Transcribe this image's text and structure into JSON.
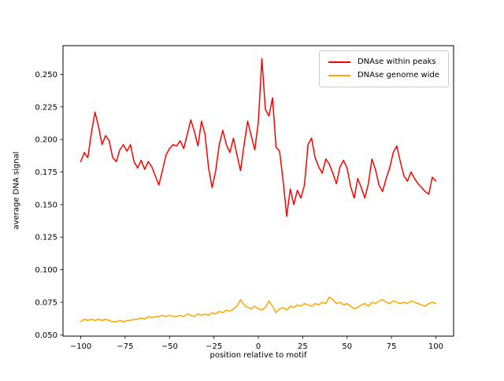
{
  "chart_data": {
    "type": "line",
    "title": "",
    "xlabel": "position relative to motif",
    "ylabel": "average DNA signal",
    "xlim": [
      -110,
      110
    ],
    "ylim": [
      0.049,
      0.272
    ],
    "grid": false,
    "legend_position": "upper right",
    "frame_color": "#000000",
    "xtick_values": [
      -100,
      -75,
      -50,
      -25,
      0,
      25,
      50,
      75,
      100
    ],
    "xtick_labels": [
      "−100",
      "−75",
      "−50",
      "−25",
      "0",
      "25",
      "50",
      "75",
      "100"
    ],
    "ytick_values": [
      0.05,
      0.075,
      0.1,
      0.125,
      0.15,
      0.175,
      0.2,
      0.225,
      0.25
    ],
    "ytick_labels": [
      "0.050",
      "0.075",
      "0.100",
      "0.125",
      "0.150",
      "0.175",
      "0.200",
      "0.225",
      "0.250"
    ],
    "x": [
      -100,
      -98,
      -96,
      -94,
      -92,
      -90,
      -88,
      -86,
      -84,
      -82,
      -80,
      -78,
      -76,
      -74,
      -72,
      -70,
      -68,
      -66,
      -64,
      -62,
      -60,
      -58,
      -56,
      -54,
      -52,
      -50,
      -48,
      -46,
      -44,
      -42,
      -40,
      -38,
      -36,
      -34,
      -32,
      -30,
      -28,
      -26,
      -24,
      -22,
      -20,
      -18,
      -16,
      -14,
      -12,
      -10,
      -8,
      -6,
      -4,
      -2,
      0,
      2,
      4,
      6,
      8,
      10,
      12,
      14,
      16,
      18,
      20,
      22,
      24,
      26,
      28,
      30,
      32,
      34,
      36,
      38,
      40,
      42,
      44,
      46,
      48,
      50,
      52,
      54,
      56,
      58,
      60,
      62,
      64,
      66,
      68,
      70,
      72,
      74,
      76,
      78,
      80,
      82,
      84,
      86,
      88,
      90,
      92,
      94,
      96,
      98,
      100
    ],
    "series": [
      {
        "name": "DNAse within peaks",
        "color": "#ff0000",
        "values": [
          0.183,
          0.19,
          0.186,
          0.205,
          0.221,
          0.21,
          0.196,
          0.203,
          0.199,
          0.186,
          0.183,
          0.192,
          0.196,
          0.191,
          0.196,
          0.183,
          0.178,
          0.184,
          0.177,
          0.183,
          0.179,
          0.172,
          0.165,
          0.176,
          0.188,
          0.193,
          0.196,
          0.195,
          0.199,
          0.193,
          0.204,
          0.215,
          0.206,
          0.195,
          0.214,
          0.204,
          0.178,
          0.163,
          0.176,
          0.196,
          0.207,
          0.196,
          0.19,
          0.201,
          0.188,
          0.176,
          0.196,
          0.214,
          0.203,
          0.192,
          0.213,
          0.262,
          0.223,
          0.218,
          0.232,
          0.194,
          0.191,
          0.168,
          0.141,
          0.162,
          0.15,
          0.161,
          0.155,
          0.165,
          0.196,
          0.201,
          0.186,
          0.179,
          0.174,
          0.185,
          0.181,
          0.174,
          0.166,
          0.179,
          0.184,
          0.178,
          0.164,
          0.155,
          0.17,
          0.163,
          0.155,
          0.166,
          0.185,
          0.177,
          0.165,
          0.16,
          0.17,
          0.178,
          0.19,
          0.195,
          0.183,
          0.172,
          0.168,
          0.175,
          0.17,
          0.166,
          0.163,
          0.16,
          0.158,
          0.171,
          0.168
        ]
      },
      {
        "name": "DNAse genome wide",
        "color": "#ffa500",
        "values": [
          0.06,
          0.062,
          0.061,
          0.062,
          0.061,
          0.062,
          0.061,
          0.062,
          0.061,
          0.06,
          0.06,
          0.061,
          0.06,
          0.061,
          0.061,
          0.062,
          0.062,
          0.063,
          0.062,
          0.064,
          0.063,
          0.064,
          0.064,
          0.065,
          0.064,
          0.065,
          0.064,
          0.064,
          0.065,
          0.064,
          0.066,
          0.065,
          0.064,
          0.066,
          0.065,
          0.066,
          0.065,
          0.067,
          0.066,
          0.068,
          0.067,
          0.069,
          0.068,
          0.07,
          0.072,
          0.077,
          0.073,
          0.071,
          0.07,
          0.072,
          0.07,
          0.069,
          0.071,
          0.076,
          0.072,
          0.067,
          0.07,
          0.071,
          0.069,
          0.072,
          0.071,
          0.073,
          0.072,
          0.074,
          0.073,
          0.072,
          0.074,
          0.073,
          0.075,
          0.074,
          0.079,
          0.077,
          0.074,
          0.075,
          0.073,
          0.074,
          0.072,
          0.07,
          0.071,
          0.073,
          0.074,
          0.072,
          0.075,
          0.074,
          0.076,
          0.077,
          0.075,
          0.074,
          0.076,
          0.075,
          0.074,
          0.075,
          0.074,
          0.076,
          0.075,
          0.074,
          0.073,
          0.072,
          0.074,
          0.075,
          0.074
        ]
      }
    ]
  }
}
